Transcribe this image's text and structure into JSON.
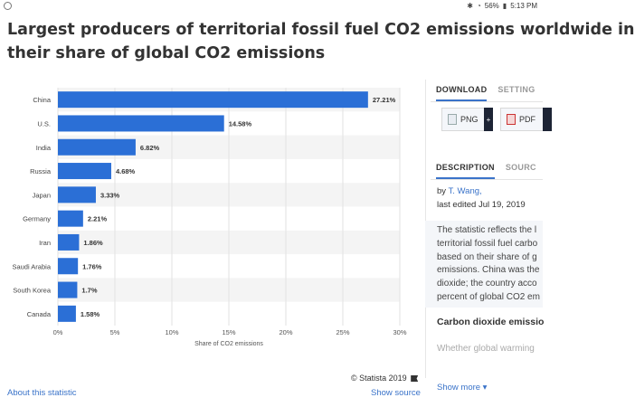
{
  "status_bar": {
    "battery": "56%",
    "time": "5:13 PM"
  },
  "title": {
    "line1": "Largest producers of territorial fossil fuel CO2 emissions worldwide in",
    "line2": "their share of global CO2 emissions"
  },
  "chart_data": {
    "type": "bar",
    "orientation": "horizontal",
    "categories": [
      "China",
      "U.S.",
      "India",
      "Russia",
      "Japan",
      "Germany",
      "Iran",
      "Saudi Arabia",
      "South Korea",
      "Canada"
    ],
    "values": [
      27.21,
      14.58,
      6.82,
      4.68,
      3.33,
      2.21,
      1.86,
      1.76,
      1.7,
      1.58
    ],
    "value_labels": [
      "27.21%",
      "14.58%",
      "6.82%",
      "4.68%",
      "3.33%",
      "2.21%",
      "1.86%",
      "1.76%",
      "1.7%",
      "1.58%"
    ],
    "xlabel": "Share of CO2 emissions",
    "xlim": [
      0,
      30
    ],
    "x_ticks": [
      0,
      5,
      10,
      15,
      20,
      25,
      30
    ],
    "x_tick_labels": [
      "0%",
      "5%",
      "10%",
      "15%",
      "20%",
      "25%",
      "30%"
    ],
    "bar_color": "#2b6fd6",
    "grid": true
  },
  "footer": {
    "credit": "© Statista 2019",
    "about_link": "About this statistic",
    "show_source": "Show source"
  },
  "panel": {
    "tabs_top": [
      "DOWNLOAD",
      "SETTING"
    ],
    "download_buttons": [
      "PNG",
      "PDF"
    ],
    "plus": "+",
    "tabs_mid": [
      "DESCRIPTION",
      "SOURC"
    ],
    "by_prefix": "by",
    "author": "T. Wang,",
    "edited": "last edited Jul 19, 2019",
    "description_lines": [
      "The statistic reflects the l",
      "territorial fossil fuel carbo",
      "based on their share of g",
      "emissions. China was the",
      "dioxide; the country acco",
      "percent of global CO2 em"
    ],
    "subheading": "Carbon dioxide emissio",
    "faded_text": "Whether global warming",
    "show_more": "Show more ▾"
  },
  "accent_color": "#3a73c9"
}
